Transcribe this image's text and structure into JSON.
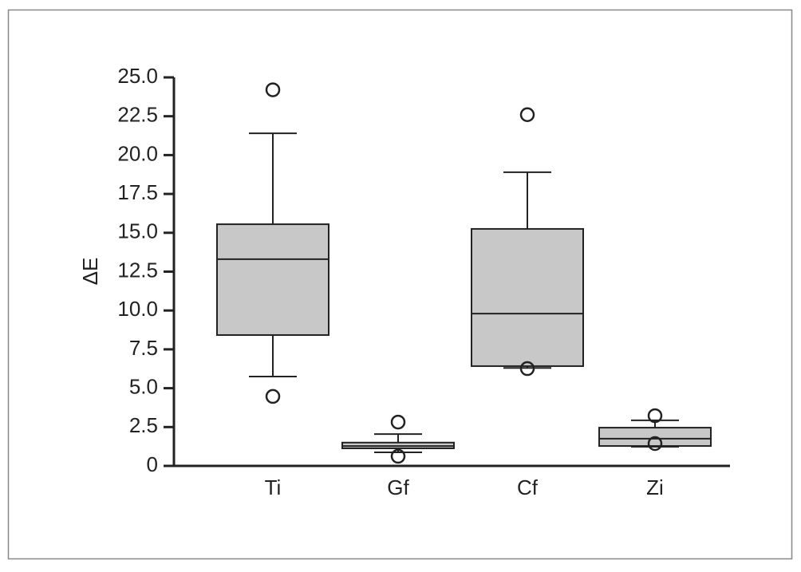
{
  "chart_data": {
    "type": "box",
    "y_label": "ΔE",
    "categories": [
      "Ti",
      "Gf",
      "Cf",
      "Zi"
    ],
    "whisker_low": [
      5.75,
      0.87,
      6.3,
      1.23
    ],
    "q1": [
      8.42,
      1.13,
      6.42,
      1.28
    ],
    "median": [
      13.3,
      1.28,
      9.8,
      1.75
    ],
    "q3": [
      15.55,
      1.5,
      15.25,
      2.46
    ],
    "whisker_high": [
      21.4,
      2.05,
      18.9,
      2.93
    ],
    "outliers": [
      [
        24.2,
        4.47
      ],
      [
        2.82,
        0.62
      ],
      [
        22.6,
        6.26
      ],
      [
        3.23,
        1.44
      ]
    ],
    "color": "#c8c8c8",
    "ylim": [
      0,
      25
    ],
    "yticks": [
      0,
      2.5,
      {
        "value": 5,
        "label": "5.0"
      },
      7.5,
      {
        "value": 10,
        "label": "10.0"
      },
      12.5,
      {
        "value": 15,
        "label": "15.0"
      },
      17.5,
      {
        "value": 20,
        "label": "20.0"
      },
      22.5,
      {
        "value": 25,
        "label": "25.0"
      }
    ]
  }
}
